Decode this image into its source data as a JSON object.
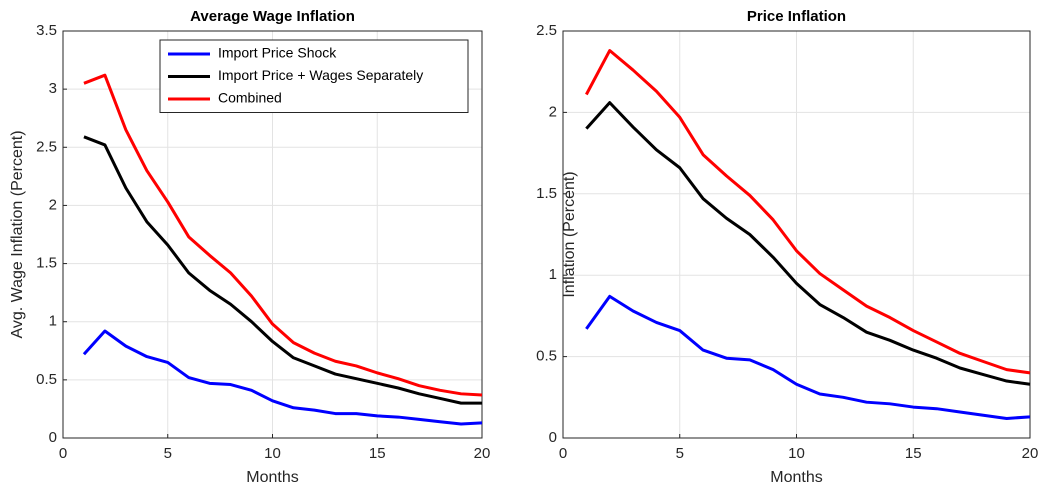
{
  "chart_data": [
    {
      "type": "line",
      "title": "Average Wage Inflation",
      "xlabel": "Months",
      "ylabel": "Avg. Wage Inflation (Percent)",
      "x": [
        1,
        2,
        3,
        4,
        5,
        6,
        7,
        8,
        9,
        10,
        11,
        12,
        13,
        14,
        15,
        16,
        17,
        18,
        19,
        20
      ],
      "xlim": [
        0,
        20
      ],
      "xticks": [
        0,
        5,
        10,
        15,
        20
      ],
      "ylim": [
        0,
        3.5
      ],
      "yticks": [
        0,
        0.5,
        1,
        1.5,
        2,
        2.5,
        3,
        3.5
      ],
      "grid": true,
      "legend": "north-east",
      "series": [
        {
          "name": "Import Price Shock",
          "color": "#0000ff",
          "values": [
            0.72,
            0.92,
            0.79,
            0.7,
            0.65,
            0.52,
            0.47,
            0.46,
            0.41,
            0.32,
            0.26,
            0.24,
            0.21,
            0.21,
            0.19,
            0.18,
            0.16,
            0.14,
            0.12,
            0.13
          ]
        },
        {
          "name": "Import Price + Wages Separately",
          "color": "#000000",
          "values": [
            2.59,
            2.52,
            2.15,
            1.86,
            1.66,
            1.42,
            1.27,
            1.15,
            1.0,
            0.83,
            0.69,
            0.62,
            0.55,
            0.51,
            0.47,
            0.43,
            0.38,
            0.34,
            0.3,
            0.3
          ]
        },
        {
          "name": "Combined",
          "color": "#ff0000",
          "values": [
            3.05,
            3.12,
            2.65,
            2.3,
            2.03,
            1.73,
            1.57,
            1.42,
            1.22,
            0.98,
            0.82,
            0.73,
            0.66,
            0.62,
            0.56,
            0.51,
            0.45,
            0.41,
            0.38,
            0.37
          ]
        }
      ]
    },
    {
      "type": "line",
      "title": "Price Inflation",
      "xlabel": "Months",
      "ylabel": "Inflation (Percent)",
      "x": [
        1,
        2,
        3,
        4,
        5,
        6,
        7,
        8,
        9,
        10,
        11,
        12,
        13,
        14,
        15,
        16,
        17,
        18,
        19,
        20
      ],
      "xlim": [
        0,
        20
      ],
      "xticks": [
        0,
        5,
        10,
        15,
        20
      ],
      "ylim": [
        0,
        2.5
      ],
      "yticks": [
        0,
        0.5,
        1,
        1.5,
        2,
        2.5
      ],
      "grid": true,
      "series": [
        {
          "color": "#0000ff",
          "values": [
            0.67,
            0.87,
            0.78,
            0.71,
            0.66,
            0.54,
            0.49,
            0.48,
            0.42,
            0.33,
            0.27,
            0.25,
            0.22,
            0.21,
            0.19,
            0.18,
            0.16,
            0.14,
            0.12,
            0.13
          ]
        },
        {
          "color": "#000000",
          "values": [
            1.9,
            2.06,
            1.91,
            1.77,
            1.66,
            1.47,
            1.35,
            1.25,
            1.11,
            0.95,
            0.82,
            0.74,
            0.65,
            0.6,
            0.54,
            0.49,
            0.43,
            0.39,
            0.35,
            0.33
          ]
        },
        {
          "color": "#ff0000",
          "values": [
            2.11,
            2.38,
            2.26,
            2.13,
            1.97,
            1.74,
            1.61,
            1.49,
            1.34,
            1.15,
            1.01,
            0.91,
            0.81,
            0.74,
            0.66,
            0.59,
            0.52,
            0.47,
            0.42,
            0.4
          ]
        }
      ]
    }
  ]
}
